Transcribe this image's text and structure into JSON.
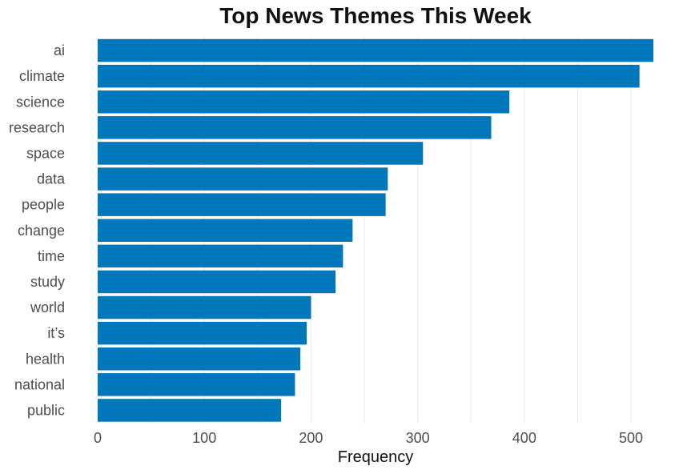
{
  "chart_data": {
    "type": "bar",
    "orientation": "horizontal",
    "title": "Top News Themes This Week",
    "xlabel": "Frequency",
    "ylabel": "",
    "categories": [
      "ai",
      "climate",
      "science",
      "research",
      "space",
      "data",
      "people",
      "change",
      "time",
      "study",
      "world",
      "it’s",
      "health",
      "national",
      "public"
    ],
    "values": [
      521,
      508,
      386,
      369,
      305,
      272,
      270,
      239,
      230,
      223,
      200,
      196,
      190,
      185,
      172
    ],
    "xlim": [
      0,
      521
    ],
    "x_ticks": [
      0,
      100,
      200,
      300,
      400,
      500
    ],
    "grid": true,
    "legend": "none",
    "bar_color": "#0077bb",
    "gridline_color": "#ebebeb"
  }
}
